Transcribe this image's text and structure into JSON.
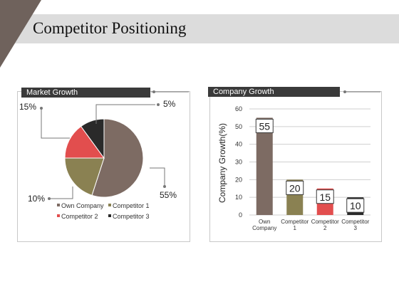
{
  "page": {
    "title": "Competitor Positioning"
  },
  "colors": {
    "own": "#7d6b63",
    "comp1": "#8a8152",
    "comp2": "#e24e4e",
    "comp3": "#2a2a2a"
  },
  "market_panel": {
    "header": "Market Growth"
  },
  "growth_panel": {
    "header": "Company Growth"
  },
  "chart_data": [
    {
      "type": "pie",
      "title": "Market Growth",
      "slices": [
        {
          "name": "Own Company",
          "value": 55,
          "label": "55%"
        },
        {
          "name": "Competitor 1",
          "value": 20
        },
        {
          "name": "Competitor 2",
          "value": 15,
          "label": "15%"
        },
        {
          "name": "Competitor 3",
          "value": 10,
          "label": "10%"
        }
      ],
      "extra_labels": [
        "5%"
      ],
      "legend": [
        "Own Company",
        "Competitor 1",
        "Competitor 2",
        "Competitor 3"
      ],
      "legend_position": "bottom"
    },
    {
      "type": "bar",
      "title": "Company Growth",
      "categories": [
        "Own Company",
        "Competitor 1",
        "Competitor 2",
        "Competitor 3"
      ],
      "values": [
        55,
        20,
        15,
        10
      ],
      "ylabel": "Company Growth(%)",
      "ylim": [
        0,
        60
      ],
      "yticks": [
        0,
        10,
        20,
        30,
        40,
        50,
        60
      ],
      "grid": true
    }
  ]
}
